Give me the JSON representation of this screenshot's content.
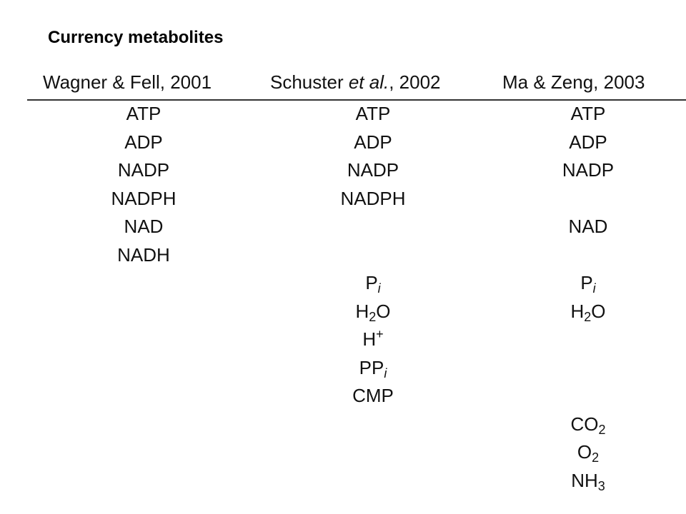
{
  "title": "Currency metabolites",
  "columns": [
    {
      "header_author": "Wagner & Fell",
      "header_etal": "",
      "header_year": ", 2001",
      "items": [
        {
          "row": 0,
          "base": "ATP",
          "sub": "",
          "sub_italic": "",
          "sup": "",
          "tail": ""
        },
        {
          "row": 1,
          "base": "ADP",
          "sub": "",
          "sub_italic": "",
          "sup": "",
          "tail": ""
        },
        {
          "row": 2,
          "base": "NADP",
          "sub": "",
          "sub_italic": "",
          "sup": "",
          "tail": ""
        },
        {
          "row": 3,
          "base": "NADPH",
          "sub": "",
          "sub_italic": "",
          "sup": "",
          "tail": ""
        },
        {
          "row": 4,
          "base": "NAD",
          "sub": "",
          "sub_italic": "",
          "sup": "",
          "tail": ""
        },
        {
          "row": 5,
          "base": "NADH",
          "sub": "",
          "sub_italic": "",
          "sup": "",
          "tail": ""
        }
      ]
    },
    {
      "header_author": "Schuster ",
      "header_etal": "et al.",
      "header_year": ", 2002",
      "items": [
        {
          "row": 0,
          "base": "ATP",
          "sub": "",
          "sub_italic": "",
          "sup": "",
          "tail": ""
        },
        {
          "row": 1,
          "base": "ADP",
          "sub": "",
          "sub_italic": "",
          "sup": "",
          "tail": ""
        },
        {
          "row": 2,
          "base": "NADP",
          "sub": "",
          "sub_italic": "",
          "sup": "",
          "tail": ""
        },
        {
          "row": 3,
          "base": "NADPH",
          "sub": "",
          "sub_italic": "",
          "sup": "",
          "tail": ""
        },
        {
          "row": 6,
          "base": "P",
          "sub": "",
          "sub_italic": "i",
          "sup": "",
          "tail": ""
        },
        {
          "row": 7,
          "base": "H",
          "sub": "2",
          "sub_italic": "",
          "sup": "",
          "tail": "O"
        },
        {
          "row": 8,
          "base": "H",
          "sub": "",
          "sub_italic": "",
          "sup": "+",
          "tail": ""
        },
        {
          "row": 9,
          "base": "PP",
          "sub": "",
          "sub_italic": "i",
          "sup": "",
          "tail": ""
        },
        {
          "row": 10,
          "base": "CMP",
          "sub": "",
          "sub_italic": "",
          "sup": "",
          "tail": ""
        }
      ]
    },
    {
      "header_author": "Ma & Zeng",
      "header_etal": "",
      "header_year": ", 2003",
      "items": [
        {
          "row": 0,
          "base": "ATP",
          "sub": "",
          "sub_italic": "",
          "sup": "",
          "tail": ""
        },
        {
          "row": 1,
          "base": "ADP",
          "sub": "",
          "sub_italic": "",
          "sup": "",
          "tail": ""
        },
        {
          "row": 2,
          "base": "NADP",
          "sub": "",
          "sub_italic": "",
          "sup": "",
          "tail": ""
        },
        {
          "row": 4,
          "base": "NAD",
          "sub": "",
          "sub_italic": "",
          "sup": "",
          "tail": ""
        },
        {
          "row": 6,
          "base": "P",
          "sub": "",
          "sub_italic": "i",
          "sup": "",
          "tail": ""
        },
        {
          "row": 7,
          "base": "H",
          "sub": "2",
          "sub_italic": "",
          "sup": "",
          "tail": "O"
        },
        {
          "row": 11,
          "base": "CO",
          "sub": "2",
          "sub_italic": "",
          "sup": "",
          "tail": ""
        },
        {
          "row": 12,
          "base": "O",
          "sub": "2",
          "sub_italic": "",
          "sup": "",
          "tail": ""
        },
        {
          "row": 13,
          "base": "NH",
          "sub": "3",
          "sub_italic": "",
          "sup": "",
          "tail": ""
        }
      ]
    }
  ]
}
